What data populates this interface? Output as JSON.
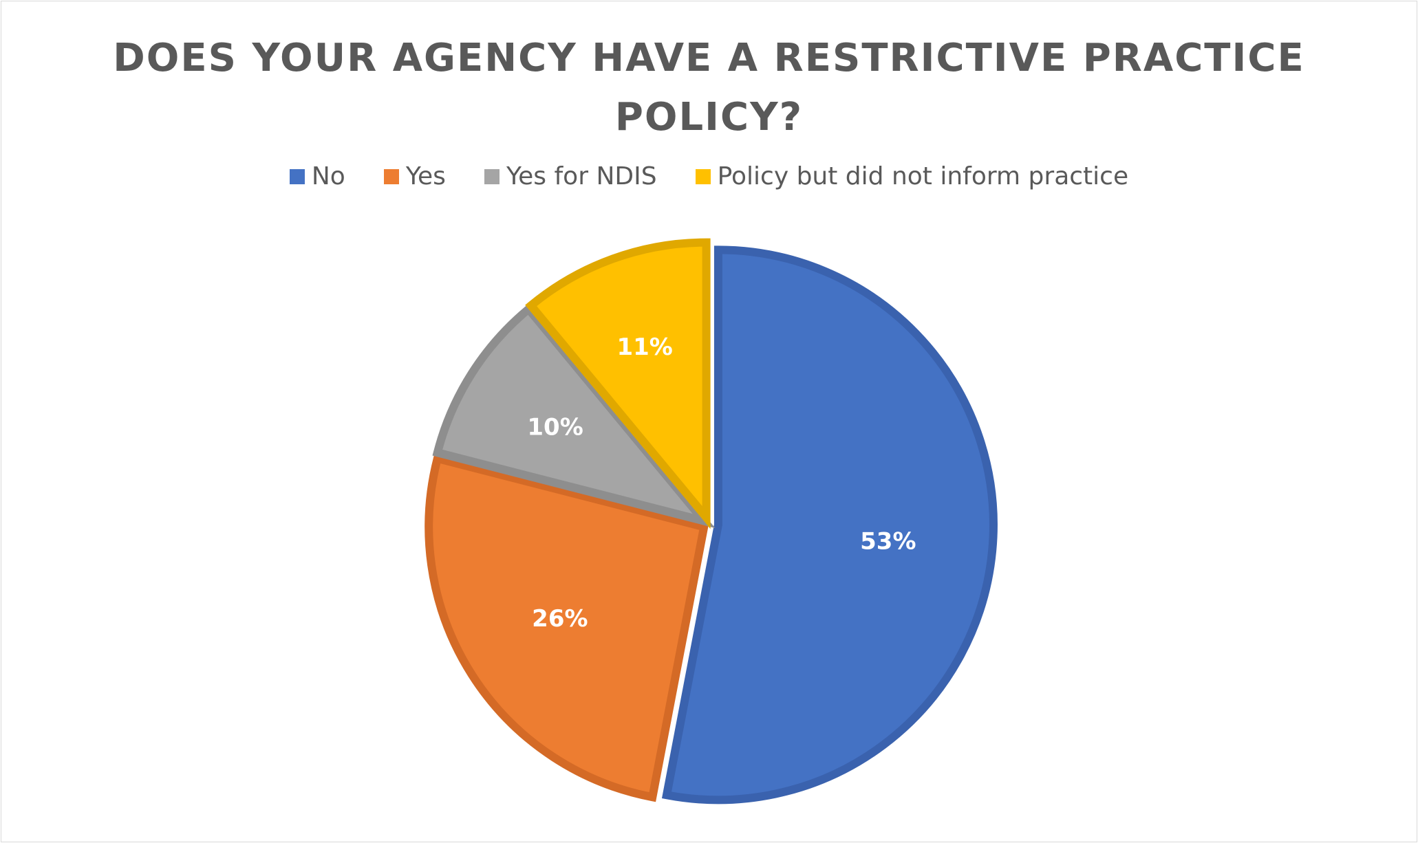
{
  "chart_data": {
    "type": "pie",
    "title_lines": [
      "DOES YOUR AGENCY HAVE A RESTRICTIVE PRACTICE",
      "POLICY?"
    ],
    "legend_position": "top",
    "slices": [
      {
        "name": "No",
        "value": 53,
        "label": "53%",
        "color": "#4472C4",
        "stroke": "#3A62AE"
      },
      {
        "name": "Yes",
        "value": 26,
        "label": "26%",
        "color": "#ED7D31",
        "stroke": "#D46A26"
      },
      {
        "name": "Yes for NDIS",
        "value": 10,
        "label": "10%",
        "color": "#A5A5A5",
        "stroke": "#8E8E8E"
      },
      {
        "name": "Policy but did not inform practice",
        "value": 11,
        "label": "11%",
        "color": "#FFC000",
        "stroke": "#E0A800"
      }
    ]
  }
}
